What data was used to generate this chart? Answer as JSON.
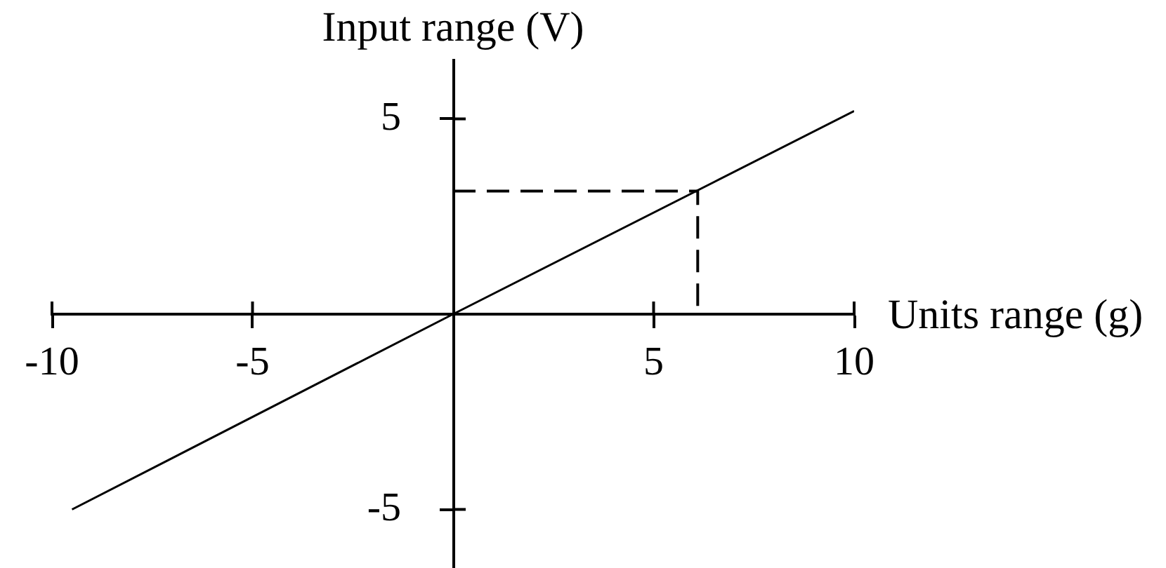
{
  "chart_data": {
    "type": "line",
    "xlabel": "Units range (g)",
    "ylabel": "Input range (V)",
    "xlim": [
      -10,
      10
    ],
    "ylim": [
      -6.5,
      6.5
    ],
    "xticks": [
      -10,
      -5,
      5,
      10
    ],
    "yticks": [
      -5,
      5
    ],
    "grid": false,
    "legend": false,
    "marker": "none",
    "series": [
      {
        "x": [
          -9.5,
          0,
          10
        ],
        "values": [
          -5,
          0,
          5.2
        ],
        "color": "#000000"
      },
      {
        "x": [
          0,
          6.1,
          6.1
        ],
        "values": [
          3.15,
          3.15,
          0
        ],
        "color": "#000000",
        "line_style": "dashed"
      }
    ]
  }
}
